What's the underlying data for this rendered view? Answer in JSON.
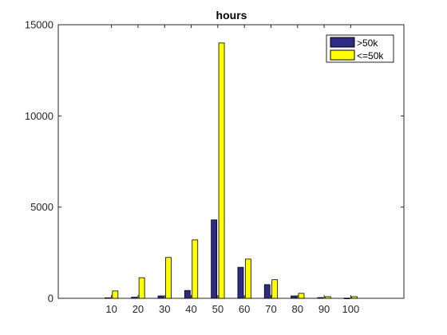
{
  "chart_data": {
    "type": "bar",
    "title": "hours",
    "xlabel": "",
    "ylabel": "",
    "categories": [
      "10",
      "20",
      "30",
      "40",
      "50",
      "60",
      "70",
      "80",
      "90",
      "100"
    ],
    "x": [
      10,
      20,
      30,
      40,
      50,
      60,
      70,
      80,
      90,
      100
    ],
    "xlim": [
      -10,
      120
    ],
    "ylim": [
      0,
      15000
    ],
    "yticks": [
      0,
      5000,
      10000,
      15000
    ],
    "grid": false,
    "legend_position": "top-right",
    "series": [
      {
        "name": ">50k",
        "color": "#2d2b83",
        "values": [
          30,
          60,
          130,
          430,
          4300,
          1700,
          750,
          130,
          40,
          10
        ]
      },
      {
        "name": "<=50k",
        "color": "#ffff00",
        "values": [
          400,
          1130,
          2240,
          3200,
          14000,
          2150,
          1020,
          270,
          90,
          90
        ]
      }
    ]
  }
}
